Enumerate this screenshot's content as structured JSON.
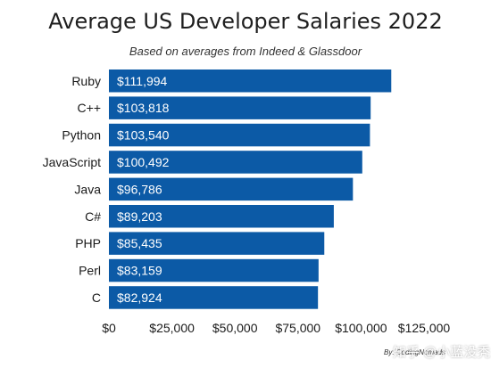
{
  "chart_data": {
    "type": "bar",
    "orientation": "horizontal",
    "title": "Average US Developer Salaries 2022",
    "subtitle": "Based on averages from Indeed & Glassdoor",
    "categories": [
      "Ruby",
      "C++",
      "Python",
      "JavaScript",
      "Java",
      "C#",
      "PHP",
      "Perl",
      "C"
    ],
    "values": [
      111994,
      103818,
      103540,
      100492,
      96786,
      89203,
      85435,
      83159,
      82924
    ],
    "value_labels": [
      "$111,994",
      "$103,818",
      "$103,540",
      "$100,492",
      "$96,786",
      "$89,203",
      "$85,435",
      "$83,159",
      "$82,924"
    ],
    "xlim": [
      0,
      125000
    ],
    "x_ticks": [
      0,
      25000,
      50000,
      75000,
      100000,
      125000
    ],
    "x_tick_labels": [
      "$0",
      "$25,000",
      "$50,000",
      "$75,000",
      "$100,000",
      "$125,000"
    ],
    "grid": false,
    "bar_color": "#0c5aa6"
  },
  "footer": {
    "credit": "By: CodingNomads",
    "watermark": "知乎 @小蓝没秃"
  }
}
